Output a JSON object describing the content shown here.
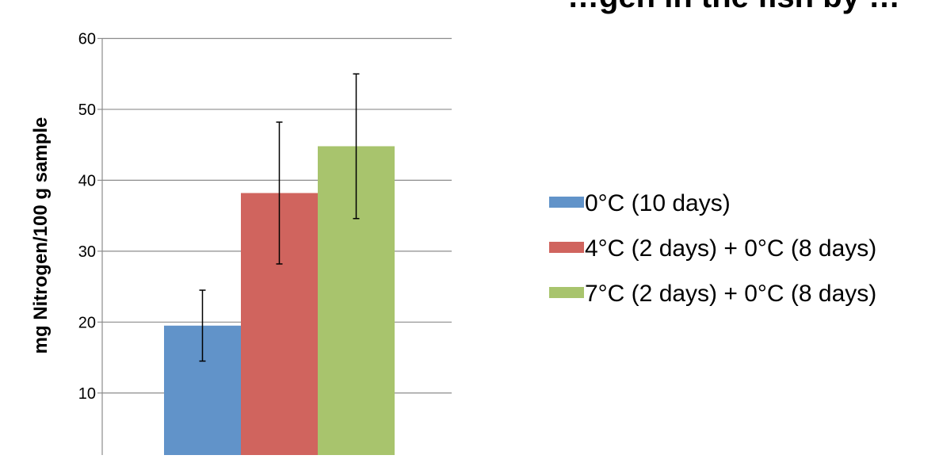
{
  "chart_data": {
    "type": "bar",
    "title": "…gen in the fish by …",
    "xlabel": "",
    "ylabel": "mg Nitrogen/100 g sample",
    "ylim": [
      0,
      60
    ],
    "yticks": [
      10,
      20,
      30,
      40,
      50,
      60
    ],
    "grid": true,
    "legend_position": "right",
    "categories": [
      ""
    ],
    "series": [
      {
        "name": "0°C (10 days)",
        "values": [
          19.5
        ],
        "error": [
          5
        ],
        "color": "#6193c9"
      },
      {
        "name": "4°C (2 days) + 0°C (8 days)",
        "values": [
          38.2
        ],
        "error": [
          10
        ],
        "color": "#d0645e"
      },
      {
        "name": "7°C (2 days) + 0°C (8 days)",
        "values": [
          44.8
        ],
        "error": [
          10.2
        ],
        "color": "#a8c46d"
      }
    ]
  }
}
